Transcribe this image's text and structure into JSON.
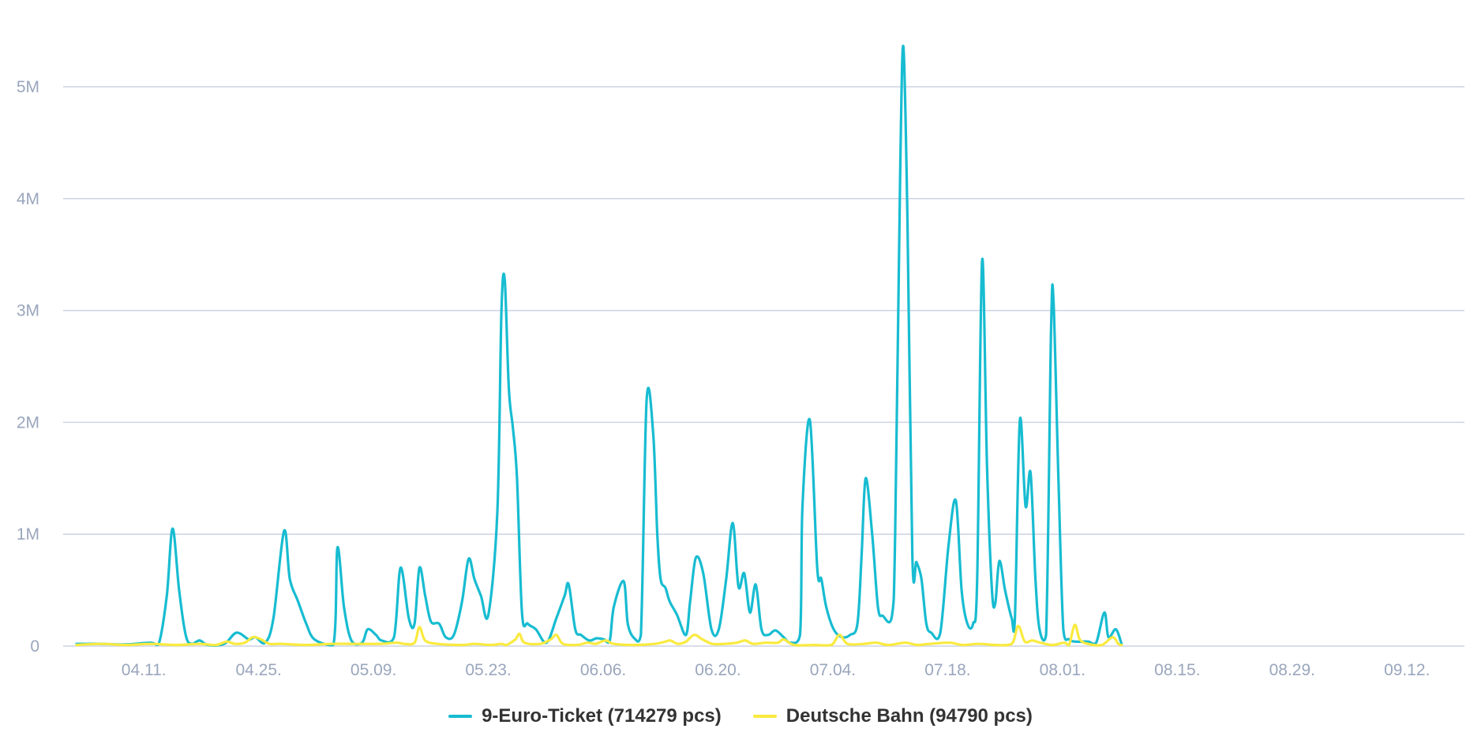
{
  "chart_data": {
    "type": "line",
    "title": "",
    "xlabel": "",
    "ylabel": "",
    "x_tick_labels": [
      "04.11.",
      "04.25.",
      "05.09.",
      "05.23.",
      "06.06.",
      "06.20.",
      "07.04.",
      "07.18.",
      "08.01.",
      "08.15.",
      "08.29.",
      "09.12."
    ],
    "y_tick_labels": [
      "0",
      "1M",
      "2M",
      "3M",
      "4M",
      "5M"
    ],
    "ylim": [
      0,
      5400000
    ],
    "grid": true,
    "legend_position": "bottom",
    "series": [
      {
        "name": "9-Euro-Ticket (714279 pcs)",
        "color": "#17bcd1",
        "points": [
          [
            0,
            20000
          ],
          [
            3,
            20000
          ],
          [
            6,
            15000
          ],
          [
            9,
            30000
          ],
          [
            10,
            15000
          ],
          [
            11,
            450000
          ],
          [
            11.7,
            1050000
          ],
          [
            12.5,
            500000
          ],
          [
            13.3,
            100000
          ],
          [
            14,
            20000
          ],
          [
            15,
            50000
          ],
          [
            16,
            10000
          ],
          [
            18,
            20000
          ],
          [
            19.5,
            120000
          ],
          [
            21,
            60000
          ],
          [
            21.8,
            80000
          ],
          [
            23,
            30000
          ],
          [
            24,
            250000
          ],
          [
            25.3,
            1030000
          ],
          [
            26,
            600000
          ],
          [
            27,
            400000
          ],
          [
            28,
            200000
          ],
          [
            29,
            60000
          ],
          [
            31.3,
            10000
          ],
          [
            31.8,
            880000
          ],
          [
            32.6,
            350000
          ],
          [
            33.5,
            50000
          ],
          [
            34.8,
            30000
          ],
          [
            35.5,
            150000
          ],
          [
            36.5,
            100000
          ],
          [
            37.2,
            50000
          ],
          [
            38.7,
            80000
          ],
          [
            39.5,
            700000
          ],
          [
            40.5,
            250000
          ],
          [
            41.2,
            200000
          ],
          [
            41.8,
            700000
          ],
          [
            42.5,
            450000
          ],
          [
            43.2,
            220000
          ],
          [
            44.2,
            200000
          ],
          [
            45,
            80000
          ],
          [
            46,
            100000
          ],
          [
            47,
            400000
          ],
          [
            47.8,
            780000
          ],
          [
            48.5,
            600000
          ],
          [
            49.3,
            450000
          ],
          [
            50.2,
            280000
          ],
          [
            51.3,
            1200000
          ],
          [
            51.8,
            3000000
          ],
          [
            52.2,
            3270000
          ],
          [
            52.7,
            2300000
          ],
          [
            53.2,
            1950000
          ],
          [
            53.7,
            1500000
          ],
          [
            54.3,
            300000
          ],
          [
            55,
            200000
          ],
          [
            56,
            150000
          ],
          [
            57.3,
            30000
          ],
          [
            58.5,
            250000
          ],
          [
            59.5,
            450000
          ],
          [
            60,
            550000
          ],
          [
            60.8,
            150000
          ],
          [
            61.5,
            100000
          ],
          [
            62.5,
            50000
          ],
          [
            63.4,
            70000
          ],
          [
            64.3,
            60000
          ],
          [
            65,
            50000
          ],
          [
            65.5,
            350000
          ],
          [
            66.7,
            580000
          ],
          [
            67.2,
            200000
          ],
          [
            68,
            70000
          ],
          [
            68.8,
            100000
          ],
          [
            69.5,
            2200000
          ],
          [
            70.3,
            1900000
          ],
          [
            70.8,
            1000000
          ],
          [
            71.2,
            600000
          ],
          [
            71.8,
            520000
          ],
          [
            72.3,
            400000
          ],
          [
            73.2,
            280000
          ],
          [
            74.3,
            100000
          ],
          [
            74.8,
            400000
          ],
          [
            75.5,
            790000
          ],
          [
            76.4,
            650000
          ],
          [
            77.4,
            150000
          ],
          [
            78.3,
            150000
          ],
          [
            79.2,
            600000
          ],
          [
            80,
            1100000
          ],
          [
            80.7,
            530000
          ],
          [
            81.4,
            650000
          ],
          [
            82.1,
            300000
          ],
          [
            82.8,
            550000
          ],
          [
            83.5,
            150000
          ],
          [
            84.3,
            100000
          ],
          [
            85.2,
            140000
          ],
          [
            86.2,
            80000
          ],
          [
            87,
            30000
          ],
          [
            88.2,
            100000
          ],
          [
            88.5,
            1250000
          ],
          [
            89.4,
            2020000
          ],
          [
            90.3,
            700000
          ],
          [
            90.8,
            600000
          ],
          [
            91.4,
            350000
          ],
          [
            92.3,
            150000
          ],
          [
            93.3,
            80000
          ],
          [
            94.3,
            100000
          ],
          [
            95.2,
            200000
          ],
          [
            95.7,
            800000
          ],
          [
            96.2,
            1500000
          ],
          [
            97,
            1000000
          ],
          [
            97.7,
            350000
          ],
          [
            98.3,
            270000
          ],
          [
            99.4,
            270000
          ],
          [
            99.8,
            1000000
          ],
          [
            100.4,
            4200000
          ],
          [
            100.8,
            5360000
          ],
          [
            101.3,
            3800000
          ],
          [
            101.9,
            800000
          ],
          [
            102.4,
            750000
          ],
          [
            103,
            600000
          ],
          [
            103.6,
            200000
          ],
          [
            104.2,
            120000
          ],
          [
            105.3,
            120000
          ],
          [
            106.3,
            900000
          ],
          [
            107.2,
            1300000
          ],
          [
            107.9,
            500000
          ],
          [
            108.6,
            200000
          ],
          [
            109.3,
            200000
          ],
          [
            109.8,
            600000
          ],
          [
            110.4,
            3450000
          ],
          [
            111,
            1600000
          ],
          [
            111.6,
            500000
          ],
          [
            112,
            380000
          ],
          [
            112.5,
            760000
          ],
          [
            113.2,
            500000
          ],
          [
            114,
            250000
          ],
          [
            114.4,
            250000
          ],
          [
            115,
            2020000
          ],
          [
            115.7,
            1250000
          ],
          [
            116.3,
            1550000
          ],
          [
            116.9,
            600000
          ],
          [
            117.4,
            150000
          ],
          [
            118.2,
            100000
          ],
          [
            118.8,
            2800000
          ],
          [
            119.1,
            3100000
          ],
          [
            119.7,
            1500000
          ],
          [
            120.3,
            150000
          ],
          [
            121,
            60000
          ],
          [
            121.8,
            40000
          ],
          [
            123.3,
            40000
          ],
          [
            124.3,
            30000
          ],
          [
            125.3,
            300000
          ],
          [
            125.8,
            80000
          ],
          [
            126.7,
            150000
          ],
          [
            127.4,
            20000
          ]
        ]
      },
      {
        "name": "Deutsche Bahn (94790 pcs)",
        "color": "#f9ea3f",
        "points": [
          [
            0,
            10000
          ],
          [
            3,
            20000
          ],
          [
            6,
            10000
          ],
          [
            9,
            20000
          ],
          [
            12,
            10000
          ],
          [
            15,
            20000
          ],
          [
            17,
            10000
          ],
          [
            18.3,
            40000
          ],
          [
            19.3,
            20000
          ],
          [
            20.5,
            30000
          ],
          [
            21.5,
            80000
          ],
          [
            22.5,
            60000
          ],
          [
            23.5,
            20000
          ],
          [
            25,
            20000
          ],
          [
            28,
            10000
          ],
          [
            31,
            20000
          ],
          [
            34,
            20000
          ],
          [
            37,
            20000
          ],
          [
            39,
            30000
          ],
          [
            40,
            20000
          ],
          [
            41.2,
            30000
          ],
          [
            41.8,
            170000
          ],
          [
            42.5,
            50000
          ],
          [
            44,
            20000
          ],
          [
            47,
            10000
          ],
          [
            48.5,
            20000
          ],
          [
            50.5,
            10000
          ],
          [
            51.8,
            20000
          ],
          [
            52.4,
            10000
          ],
          [
            53.5,
            60000
          ],
          [
            54,
            110000
          ],
          [
            54.6,
            30000
          ],
          [
            56.5,
            20000
          ],
          [
            57.8,
            60000
          ],
          [
            58.5,
            100000
          ],
          [
            59.3,
            20000
          ],
          [
            61,
            10000
          ],
          [
            62.3,
            30000
          ],
          [
            63.3,
            20000
          ],
          [
            64.5,
            50000
          ],
          [
            65.5,
            20000
          ],
          [
            68,
            10000
          ],
          [
            70.5,
            20000
          ],
          [
            71.8,
            40000
          ],
          [
            72.4,
            50000
          ],
          [
            73.3,
            20000
          ],
          [
            74.3,
            40000
          ],
          [
            75.3,
            100000
          ],
          [
            76.3,
            60000
          ],
          [
            77.5,
            20000
          ],
          [
            79,
            20000
          ],
          [
            80.5,
            30000
          ],
          [
            81.5,
            50000
          ],
          [
            82.5,
            20000
          ],
          [
            84,
            30000
          ],
          [
            85.5,
            30000
          ],
          [
            86.2,
            60000
          ],
          [
            87.5,
            10000
          ],
          [
            90,
            10000
          ],
          [
            92,
            10000
          ],
          [
            93,
            100000
          ],
          [
            94,
            20000
          ],
          [
            96,
            20000
          ],
          [
            97.5,
            30000
          ],
          [
            99,
            10000
          ],
          [
            101,
            30000
          ],
          [
            102.5,
            10000
          ],
          [
            104,
            20000
          ],
          [
            106.5,
            30000
          ],
          [
            108,
            10000
          ],
          [
            110,
            20000
          ],
          [
            112,
            10000
          ],
          [
            114,
            20000
          ],
          [
            114.8,
            180000
          ],
          [
            115.6,
            40000
          ],
          [
            116.5,
            50000
          ],
          [
            117.5,
            30000
          ],
          [
            119,
            10000
          ],
          [
            120.4,
            30000
          ],
          [
            121,
            10000
          ],
          [
            121.7,
            190000
          ],
          [
            122.3,
            60000
          ],
          [
            123.3,
            20000
          ],
          [
            125,
            10000
          ],
          [
            126.3,
            80000
          ],
          [
            127,
            20000
          ],
          [
            127.4,
            10000
          ]
        ]
      }
    ]
  }
}
